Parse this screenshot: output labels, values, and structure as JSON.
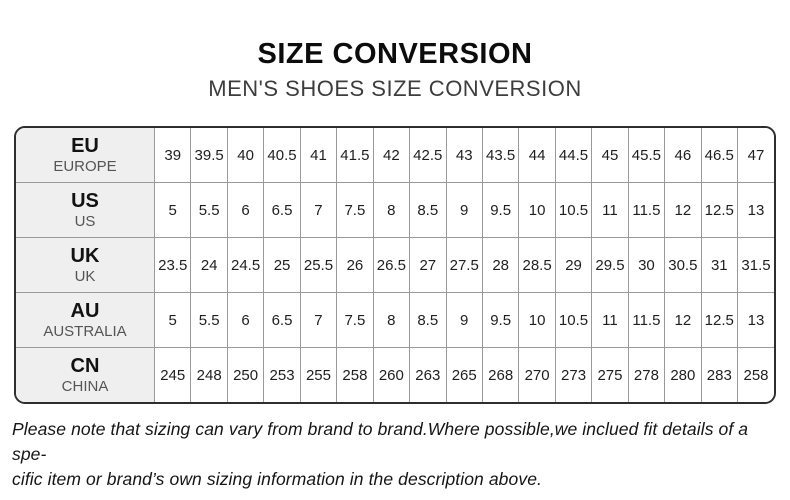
{
  "page": {
    "title": "SIZE CONVERSION",
    "subtitle": "MEN'S SHOES SIZE CONVERSION"
  },
  "table": {
    "rows": [
      {
        "code": "EU",
        "region": "EUROPE",
        "values": [
          "39",
          "39.5",
          "40",
          "40.5",
          "41",
          "41.5",
          "42",
          "42.5",
          "43",
          "43.5",
          "44",
          "44.5",
          "45",
          "45.5",
          "46",
          "46.5",
          "47"
        ]
      },
      {
        "code": "US",
        "region": "US",
        "values": [
          "5",
          "5.5",
          "6",
          "6.5",
          "7",
          "7.5",
          "8",
          "8.5",
          "9",
          "9.5",
          "10",
          "10.5",
          "11",
          "11.5",
          "12",
          "12.5",
          "13"
        ]
      },
      {
        "code": "UK",
        "region": "UK",
        "values": [
          "23.5",
          "24",
          "24.5",
          "25",
          "25.5",
          "26",
          "26.5",
          "27",
          "27.5",
          "28",
          "28.5",
          "29",
          "29.5",
          "30",
          "30.5",
          "31",
          "31.5"
        ]
      },
      {
        "code": "AU",
        "region": "AUSTRALIA",
        "values": [
          "5",
          "5.5",
          "6",
          "6.5",
          "7",
          "7.5",
          "8",
          "8.5",
          "9",
          "9.5",
          "10",
          "10.5",
          "11",
          "11.5",
          "12",
          "12.5",
          "13"
        ]
      },
      {
        "code": "CN",
        "region": "CHINA",
        "values": [
          "245",
          "248",
          "250",
          "253",
          "255",
          "258",
          "260",
          "263",
          "265",
          "268",
          "270",
          "273",
          "275",
          "278",
          "280",
          "283",
          "258"
        ]
      }
    ]
  },
  "footer": {
    "note_line1": "Please note that sizing can vary from brand to brand.Where possible,we inclued fit details of a spe-",
    "note_line2": "cific item or brand’s own sizing information in the description above."
  },
  "colors": {
    "outer_border": "#2e2e2e",
    "grid_line": "#9a9a9a",
    "header_cell_bg": "#efefef",
    "title_text": "#0c0c0c",
    "subtitle_text": "#3d3d3d"
  }
}
